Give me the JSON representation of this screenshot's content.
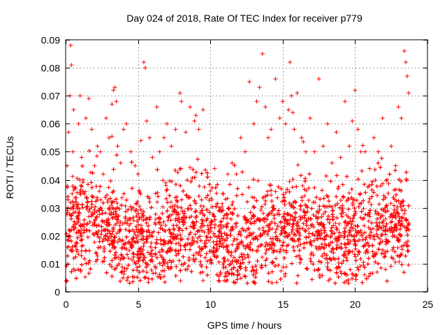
{
  "chart_data": {
    "type": "scatter",
    "title": "Day 024 of 2018, Rate Of TEC Index for receiver p779",
    "xlabel": "GPS time / hours",
    "ylabel": "ROTI / TECUs",
    "xlim": [
      0,
      25
    ],
    "ylim": [
      0,
      0.09
    ],
    "x_ticks": [
      0,
      5,
      10,
      15,
      20,
      25
    ],
    "y_ticks": [
      0,
      0.01,
      0.02,
      0.03,
      0.04,
      0.05,
      0.06,
      0.07,
      0.08,
      0.09
    ],
    "x_tick_labels": [
      "0",
      "5",
      "10",
      "15",
      "20",
      "25"
    ],
    "y_tick_labels": [
      "0",
      "0.01",
      "0.02",
      "0.03",
      "0.04",
      "0.05",
      "0.06",
      "0.07",
      "0.08",
      "0.09"
    ],
    "grid": true,
    "marker": "+",
    "series": [
      {
        "name": "ROTI",
        "color": "#ff0000",
        "x": [
          0.05,
          0.1,
          0.15,
          0.2,
          0.3,
          0.35,
          0.4,
          0.45,
          0.5,
          0.55,
          0.7,
          0.9,
          1.0,
          1.1,
          1.2,
          1.4,
          1.6,
          1.8,
          2.0,
          2.2,
          2.4,
          2.6,
          2.8,
          3.0,
          3.2,
          3.3,
          3.4,
          3.5,
          3.6,
          3.8,
          4.0,
          4.2,
          4.5,
          4.8,
          5.0,
          5.2,
          5.4,
          5.5,
          5.6,
          5.8,
          6.0,
          6.3,
          6.5,
          6.8,
          7.0,
          7.3,
          7.6,
          7.9,
          8.0,
          8.3,
          8.6,
          8.9,
          9.0,
          9.2,
          9.5,
          9.8,
          10.0,
          10.3,
          10.6,
          10.9,
          11.2,
          11.5,
          11.8,
          12.1,
          12.4,
          12.7,
          13.0,
          13.2,
          13.4,
          13.6,
          13.8,
          14.0,
          14.2,
          14.5,
          14.8,
          15.0,
          15.2,
          15.4,
          15.5,
          15.6,
          15.7,
          15.8,
          16.0,
          16.3,
          16.6,
          16.9,
          17.2,
          17.5,
          17.8,
          18.1,
          18.4,
          18.7,
          19.0,
          19.3,
          19.6,
          19.8,
          20.0,
          20.2,
          20.4,
          20.7,
          21.0,
          21.3,
          21.6,
          21.9,
          22.2,
          22.5,
          22.8,
          23.0,
          23.2,
          23.4,
          23.5,
          23.6,
          23.7
        ],
        "y": [
          0.004,
          0.045,
          0.03,
          0.057,
          0.07,
          0.088,
          0.081,
          0.035,
          0.05,
          0.065,
          0.032,
          0.06,
          0.07,
          0.048,
          0.04,
          0.062,
          0.069,
          0.058,
          0.045,
          0.052,
          0.05,
          0.042,
          0.062,
          0.055,
          0.067,
          0.072,
          0.073,
          0.068,
          0.052,
          0.046,
          0.058,
          0.06,
          0.05,
          0.045,
          0.042,
          0.054,
          0.082,
          0.08,
          0.061,
          0.055,
          0.048,
          0.066,
          0.05,
          0.055,
          0.06,
          0.052,
          0.058,
          0.071,
          0.068,
          0.057,
          0.066,
          0.061,
          0.063,
          0.058,
          0.065,
          0.041,
          0.036,
          0.044,
          0.03,
          0.035,
          0.042,
          0.046,
          0.042,
          0.055,
          0.05,
          0.075,
          0.06,
          0.068,
          0.073,
          0.085,
          0.066,
          0.055,
          0.058,
          0.076,
          0.062,
          0.068,
          0.06,
          0.065,
          0.082,
          0.07,
          0.064,
          0.058,
          0.071,
          0.055,
          0.05,
          0.062,
          0.05,
          0.076,
          0.052,
          0.06,
          0.046,
          0.057,
          0.048,
          0.068,
          0.052,
          0.061,
          0.072,
          0.058,
          0.05,
          0.05,
          0.044,
          0.055,
          0.05,
          0.062,
          0.04,
          0.052,
          0.045,
          0.066,
          0.062,
          0.086,
          0.082,
          0.077,
          0.071
        ]
      }
    ]
  }
}
